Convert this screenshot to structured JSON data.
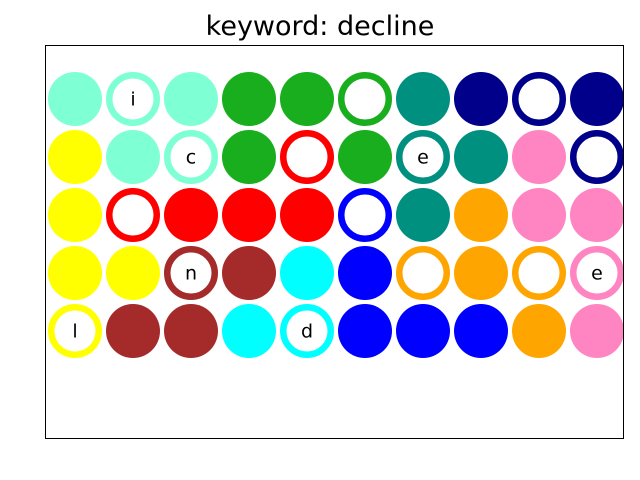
{
  "title": "keyword: decline",
  "colors": {
    "aquamarine": "#7fffd4",
    "green": "#18ae1e",
    "teal": "#009080",
    "navy": "#00008b",
    "yellow": "#ffff00",
    "red": "#ff0000",
    "blue": "#0000ff",
    "orange": "#ffa500",
    "pink": "#ff85c2",
    "brown": "#a52a2a",
    "cyan": "#00ffff"
  },
  "grid": [
    [
      {
        "color": "aquamarine",
        "style": "filled",
        "letter": ""
      },
      {
        "color": "aquamarine",
        "style": "ring",
        "letter": "i"
      },
      {
        "color": "aquamarine",
        "style": "filled",
        "letter": ""
      },
      {
        "color": "green",
        "style": "filled",
        "letter": ""
      },
      {
        "color": "green",
        "style": "filled",
        "letter": ""
      },
      {
        "color": "green",
        "style": "ring",
        "letter": ""
      },
      {
        "color": "teal",
        "style": "filled",
        "letter": ""
      },
      {
        "color": "navy",
        "style": "filled",
        "letter": ""
      },
      {
        "color": "navy",
        "style": "ring",
        "letter": ""
      },
      {
        "color": "navy",
        "style": "filled",
        "letter": ""
      }
    ],
    [
      {
        "color": "yellow",
        "style": "filled",
        "letter": ""
      },
      {
        "color": "aquamarine",
        "style": "filled",
        "letter": ""
      },
      {
        "color": "aquamarine",
        "style": "ring",
        "letter": "c"
      },
      {
        "color": "green",
        "style": "filled",
        "letter": ""
      },
      {
        "color": "red",
        "style": "ring",
        "letter": ""
      },
      {
        "color": "green",
        "style": "filled",
        "letter": ""
      },
      {
        "color": "teal",
        "style": "ring",
        "letter": "e"
      },
      {
        "color": "teal",
        "style": "filled",
        "letter": ""
      },
      {
        "color": "pink",
        "style": "filled",
        "letter": ""
      },
      {
        "color": "navy",
        "style": "ring",
        "letter": ""
      }
    ],
    [
      {
        "color": "yellow",
        "style": "filled",
        "letter": ""
      },
      {
        "color": "red",
        "style": "ring",
        "letter": ""
      },
      {
        "color": "red",
        "style": "filled",
        "letter": ""
      },
      {
        "color": "red",
        "style": "filled",
        "letter": ""
      },
      {
        "color": "red",
        "style": "filled",
        "letter": ""
      },
      {
        "color": "blue",
        "style": "ring",
        "letter": ""
      },
      {
        "color": "teal",
        "style": "filled",
        "letter": ""
      },
      {
        "color": "orange",
        "style": "filled",
        "letter": ""
      },
      {
        "color": "pink",
        "style": "filled",
        "letter": ""
      },
      {
        "color": "pink",
        "style": "filled",
        "letter": ""
      }
    ],
    [
      {
        "color": "yellow",
        "style": "filled",
        "letter": ""
      },
      {
        "color": "yellow",
        "style": "filled",
        "letter": ""
      },
      {
        "color": "brown",
        "style": "ring",
        "letter": "n"
      },
      {
        "color": "brown",
        "style": "filled",
        "letter": ""
      },
      {
        "color": "cyan",
        "style": "filled",
        "letter": ""
      },
      {
        "color": "blue",
        "style": "filled",
        "letter": ""
      },
      {
        "color": "orange",
        "style": "ring",
        "letter": ""
      },
      {
        "color": "orange",
        "style": "filled",
        "letter": ""
      },
      {
        "color": "orange",
        "style": "ring",
        "letter": ""
      },
      {
        "color": "pink",
        "style": "ring",
        "letter": "e"
      }
    ],
    [
      {
        "color": "yellow",
        "style": "ring",
        "letter": "l"
      },
      {
        "color": "brown",
        "style": "filled",
        "letter": ""
      },
      {
        "color": "brown",
        "style": "filled",
        "letter": ""
      },
      {
        "color": "cyan",
        "style": "filled",
        "letter": ""
      },
      {
        "color": "cyan",
        "style": "ring",
        "letter": "d"
      },
      {
        "color": "blue",
        "style": "filled",
        "letter": ""
      },
      {
        "color": "blue",
        "style": "filled",
        "letter": ""
      },
      {
        "color": "blue",
        "style": "filled",
        "letter": ""
      },
      {
        "color": "orange",
        "style": "filled",
        "letter": ""
      },
      {
        "color": "pink",
        "style": "filled",
        "letter": ""
      }
    ]
  ]
}
